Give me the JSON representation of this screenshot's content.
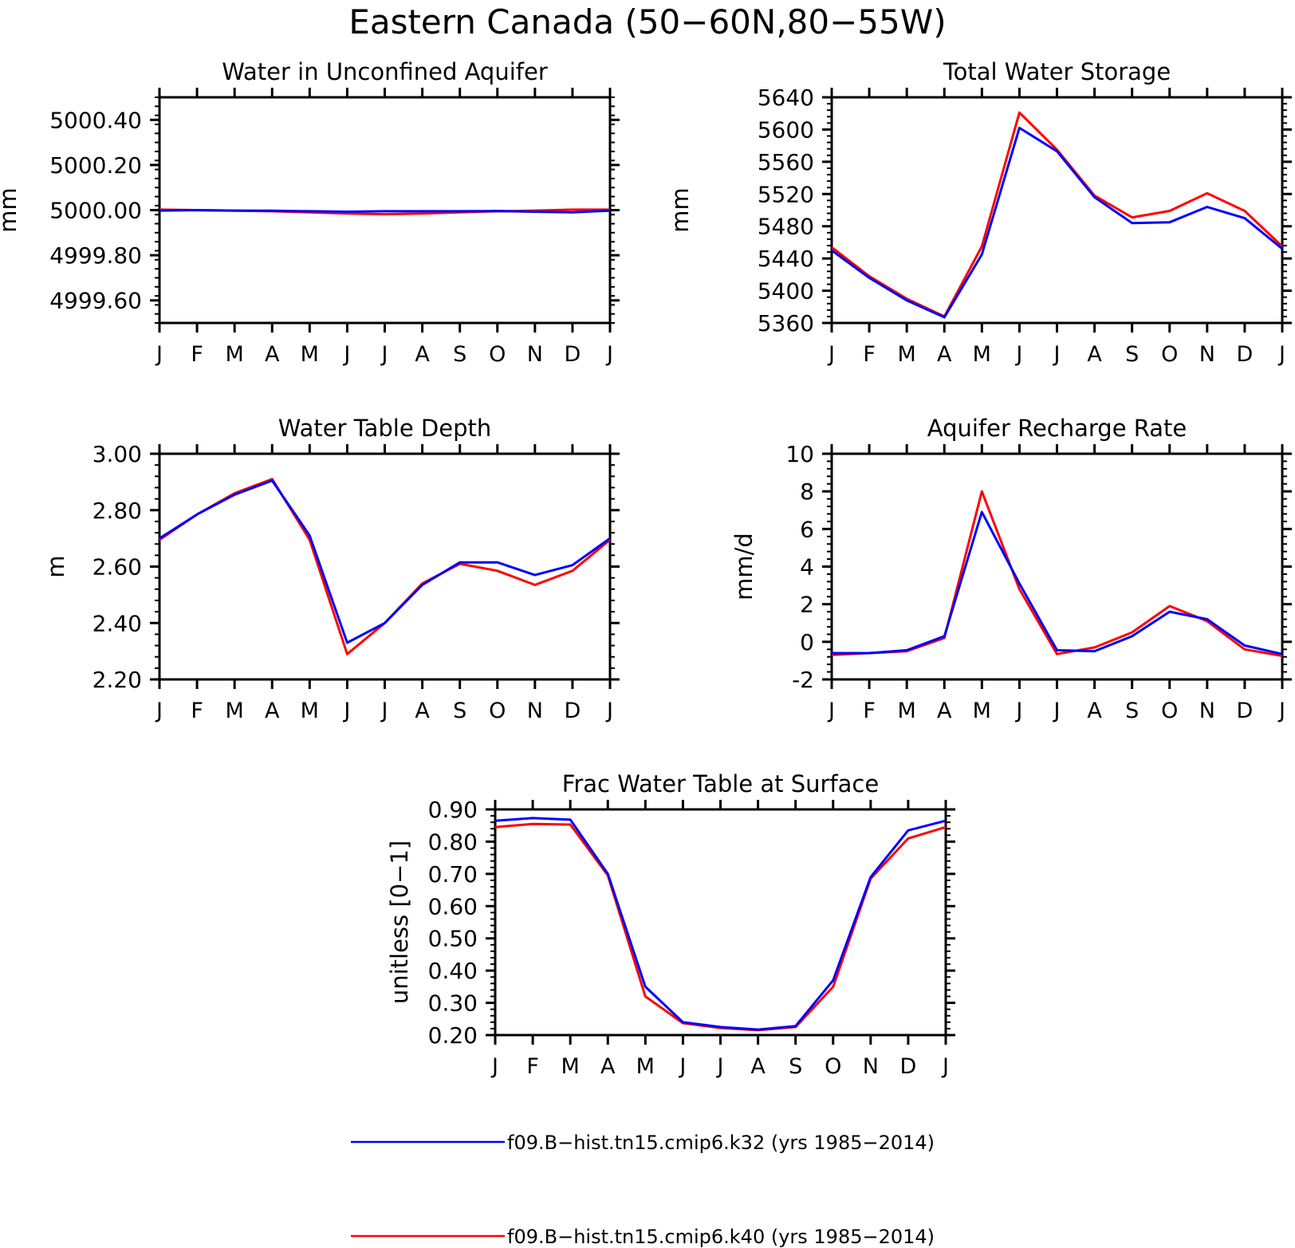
{
  "figure": {
    "title": "Eastern Canada (50−60N,80−55W)",
    "colors": {
      "k32": "#0000ff",
      "k40": "#ff0000",
      "axis": "#000000"
    },
    "legend": [
      {
        "key": "k32",
        "label": "f09.B−hist.tn15.cmip6.k32 (yrs 1985−2014)"
      },
      {
        "key": "k40",
        "label": "f09.B−hist.tn15.cmip6.k40 (yrs 1985−2014)"
      }
    ]
  },
  "chart_data": [
    {
      "id": "aquifer",
      "type": "line",
      "title": "Water in Unconfined Aquifer",
      "ylabel": "mm",
      "ylim": [
        4999.5,
        5000.5
      ],
      "yticks": [
        4999.6,
        4999.8,
        5000.0,
        5000.2,
        5000.4
      ],
      "ydecimals": 2,
      "categories": [
        "J",
        "F",
        "M",
        "A",
        "M",
        "J",
        "J",
        "A",
        "S",
        "O",
        "N",
        "D",
        "J"
      ],
      "series": [
        {
          "key": "k40",
          "values": [
            5000.002,
            5000.0,
            4999.998,
            4999.995,
            4999.99,
            4999.985,
            4999.982,
            4999.985,
            4999.99,
            4999.995,
            4999.998,
            5000.002,
            5000.002
          ]
        },
        {
          "key": "k32",
          "values": [
            4999.998,
            5000.0,
            4999.998,
            4999.997,
            4999.995,
            4999.993,
            4999.995,
            4999.995,
            4999.995,
            4999.996,
            4999.993,
            4999.99,
            4999.998
          ]
        }
      ]
    },
    {
      "id": "tws",
      "type": "line",
      "title": "Total Water Storage",
      "ylabel": "mm",
      "ylim": [
        5360,
        5640
      ],
      "yticks": [
        5360,
        5400,
        5440,
        5480,
        5520,
        5560,
        5600,
        5640
      ],
      "ydecimals": 0,
      "categories": [
        "J",
        "F",
        "M",
        "A",
        "M",
        "J",
        "J",
        "A",
        "S",
        "O",
        "N",
        "D",
        "J"
      ],
      "series": [
        {
          "key": "k40",
          "values": [
            5454,
            5418,
            5390,
            5368,
            5455,
            5621,
            5575,
            5518,
            5491,
            5499,
            5521,
            5499,
            5455
          ]
        },
        {
          "key": "k32",
          "values": [
            5450,
            5416,
            5388,
            5367,
            5445,
            5602,
            5573,
            5516,
            5484,
            5485,
            5504,
            5490,
            5452
          ]
        }
      ]
    },
    {
      "id": "wtd",
      "type": "line",
      "title": "Water Table Depth",
      "ylabel": "m",
      "ylim": [
        2.2,
        3.0
      ],
      "yticks": [
        2.2,
        2.4,
        2.6,
        2.8,
        3.0
      ],
      "ydecimals": 2,
      "categories": [
        "J",
        "F",
        "M",
        "A",
        "M",
        "J",
        "J",
        "A",
        "S",
        "O",
        "N",
        "D",
        "J"
      ],
      "series": [
        {
          "key": "k40",
          "values": [
            2.695,
            2.785,
            2.86,
            2.91,
            2.695,
            2.29,
            2.4,
            2.54,
            2.61,
            2.585,
            2.535,
            2.585,
            2.695
          ]
        },
        {
          "key": "k32",
          "values": [
            2.7,
            2.785,
            2.855,
            2.905,
            2.71,
            2.33,
            2.4,
            2.535,
            2.615,
            2.615,
            2.57,
            2.605,
            2.7
          ]
        }
      ]
    },
    {
      "id": "recharge",
      "type": "line",
      "title": "Aquifer Recharge Rate",
      "ylabel": "mm/d",
      "ylim": [
        -2,
        10
      ],
      "yticks": [
        -2,
        0,
        2,
        4,
        6,
        8,
        10
      ],
      "ydecimals": 0,
      "categories": [
        "J",
        "F",
        "M",
        "A",
        "M",
        "J",
        "J",
        "A",
        "S",
        "O",
        "N",
        "D",
        "J"
      ],
      "series": [
        {
          "key": "k40",
          "values": [
            -0.7,
            -0.6,
            -0.5,
            0.2,
            8.0,
            2.8,
            -0.65,
            -0.3,
            0.5,
            1.9,
            1.1,
            -0.4,
            -0.75
          ]
        },
        {
          "key": "k32",
          "values": [
            -0.6,
            -0.6,
            -0.45,
            0.3,
            6.9,
            3.1,
            -0.45,
            -0.5,
            0.3,
            1.6,
            1.2,
            -0.2,
            -0.65
          ]
        }
      ]
    },
    {
      "id": "frac",
      "type": "line",
      "title": "Frac Water Table at Surface",
      "ylabel": "unitless [0−1]",
      "ylim": [
        0.2,
        0.9
      ],
      "yticks": [
        0.2,
        0.3,
        0.4,
        0.5,
        0.6,
        0.7,
        0.8,
        0.9
      ],
      "ydecimals": 2,
      "categories": [
        "J",
        "F",
        "M",
        "A",
        "M",
        "J",
        "J",
        "A",
        "S",
        "O",
        "N",
        "D",
        "J"
      ],
      "series": [
        {
          "key": "k40",
          "values": [
            0.845,
            0.855,
            0.853,
            0.695,
            0.32,
            0.237,
            0.222,
            0.215,
            0.225,
            0.35,
            0.685,
            0.81,
            0.845
          ]
        },
        {
          "key": "k32",
          "values": [
            0.865,
            0.873,
            0.868,
            0.7,
            0.35,
            0.24,
            0.225,
            0.217,
            0.228,
            0.37,
            0.69,
            0.835,
            0.865
          ]
        }
      ]
    }
  ]
}
